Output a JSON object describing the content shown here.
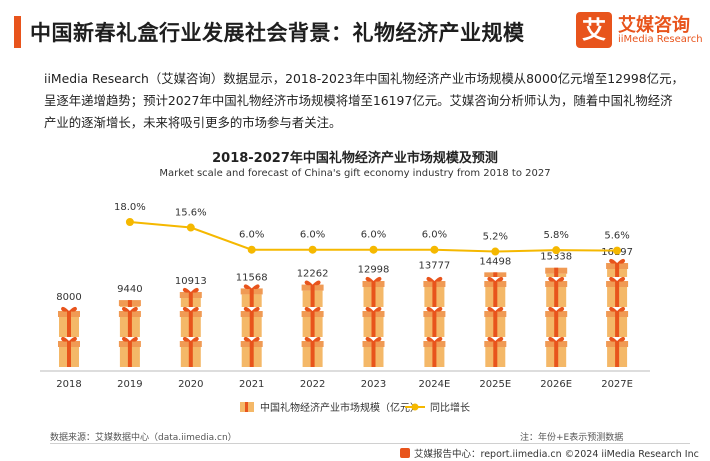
{
  "header": {
    "title": "中国新春礼盒行业发展社会背景：礼物经济产业规模",
    "logo_mark": "艾",
    "logo_cn": "艾媒咨询",
    "logo_en": "iiMedia Research"
  },
  "intro": "iiMedia Research（艾媒咨询）数据显示，2018-2023年中国礼物经济产业市场规模从8000亿元增至12998亿元，呈逐年递增趋势；预计2027年中国礼物经济市场规模将增至16197亿元。艾媒咨询分析师认为，随着中国礼物经济产业的逐渐增长，未来将吸引更多的市场参与者关注。",
  "chart_data": {
    "type": "bar",
    "title": "2018-2027年中国礼物经济产业市场规模及预测",
    "subtitle": "Market scale and forecast of China's gift economy industry from 2018 to 2027",
    "categories": [
      "2018",
      "2019",
      "2020",
      "2021",
      "2022",
      "2023",
      "2024E",
      "2025E",
      "2026E",
      "2027E"
    ],
    "series": [
      {
        "name": "中国礼物经济产业市场规模（亿元）",
        "type": "bar",
        "values": [
          8000,
          9440,
          10913,
          11568,
          12262,
          12998,
          13777,
          14498,
          15338,
          16197
        ],
        "labels": [
          "8000",
          "9440",
          "10913",
          "11568",
          "12262",
          "12998",
          "13777",
          "14498",
          "15338",
          "16197"
        ]
      },
      {
        "name": "同比增长",
        "type": "line",
        "values": [
          null,
          18.0,
          15.6,
          6.0,
          6.0,
          6.0,
          6.0,
          5.2,
          5.8,
          5.6
        ],
        "labels": [
          "",
          "18.0%",
          "15.6%",
          "6.0%",
          "6.0%",
          "6.0%",
          "6.0%",
          "5.2%",
          "5.8%",
          "5.6%"
        ]
      }
    ],
    "colors": {
      "bar": "#f4b868",
      "ribbon": "#e8541c",
      "line": "#f5b800"
    }
  },
  "footer": {
    "source": "数据来源：艾媒数据中心（data.iimedia.cn）",
    "note": "注：年份+E表示预测数据",
    "bar": "艾媒报告中心：report.iimedia.cn   ©2024 iiMedia Research  Inc"
  }
}
